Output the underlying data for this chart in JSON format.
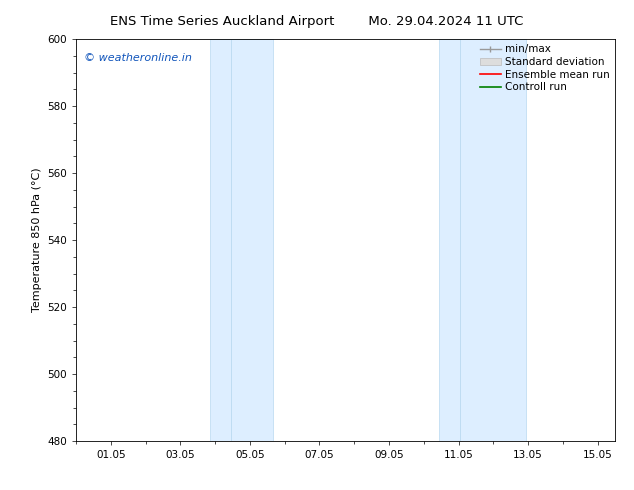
{
  "title_left": "ENS Time Series Auckland Airport",
  "title_right": "Mo. 29.04.2024 11 UTC",
  "ylabel": "Temperature 850 hPa (°C)",
  "xlim": [
    0,
    15.5
  ],
  "ylim": [
    480,
    600
  ],
  "yticks": [
    480,
    500,
    520,
    540,
    560,
    580,
    600
  ],
  "xtick_labels": [
    "01.05",
    "03.05",
    "05.05",
    "07.05",
    "09.05",
    "11.05",
    "13.05",
    "15.05"
  ],
  "xtick_positions": [
    1,
    3,
    5,
    7,
    9,
    11,
    13,
    15
  ],
  "shaded_bands": [
    {
      "x_start": 3.9,
      "x_end": 4.5,
      "inner_start": 4.5,
      "inner_end": 5.6
    },
    {
      "x_start": 10.5,
      "x_end": 11.0,
      "inner_start": 11.0,
      "inner_end": 12.9
    }
  ],
  "band_color_outer": "#ddeeff",
  "band_color_inner": "#cce8fa",
  "band_edge_color": "#b8d8f0",
  "watermark_text": "© weatheronline.in",
  "watermark_color": "#1155bb",
  "legend_entries": [
    {
      "label": "min/max",
      "color": "#999999",
      "lw": 1.2
    },
    {
      "label": "Standard deviation",
      "color": "#cccccc",
      "lw": 5
    },
    {
      "label": "Ensemble mean run",
      "color": "red",
      "lw": 1.2
    },
    {
      "label": "Controll run",
      "color": "green",
      "lw": 1.2
    }
  ],
  "background_color": "#ffffff",
  "title_fontsize": 9.5,
  "axis_label_fontsize": 8,
  "tick_fontsize": 7.5,
  "legend_fontsize": 7.5
}
